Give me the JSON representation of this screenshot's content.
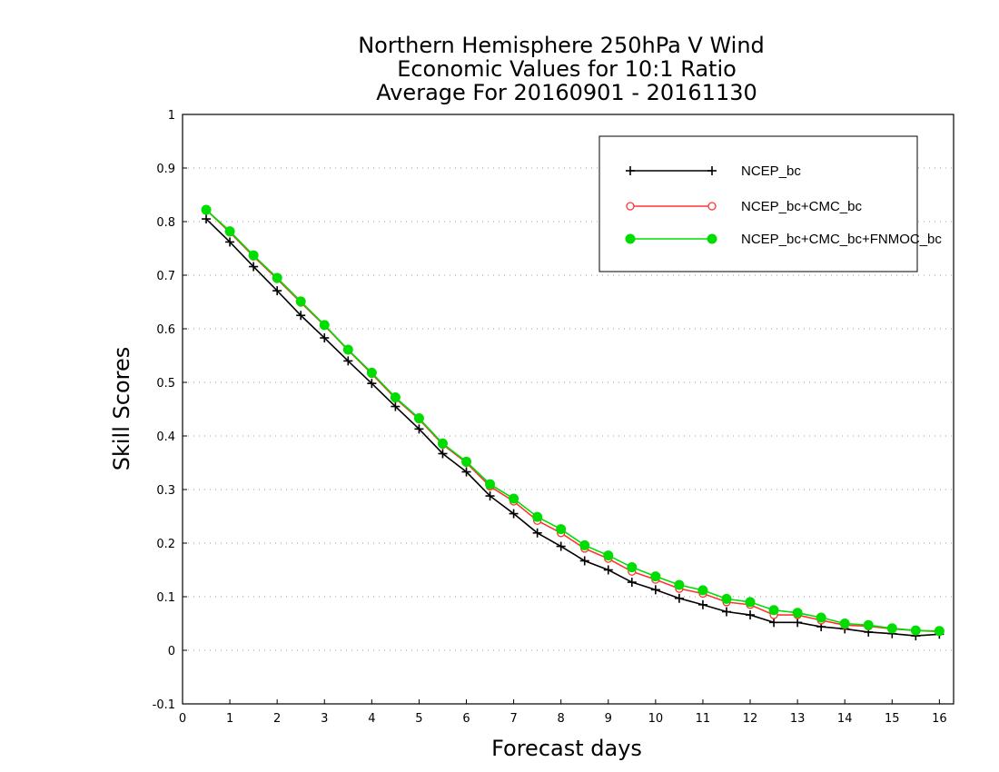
{
  "chart_data": {
    "type": "line",
    "title_lines": [
      "Northern Hemisphere 250hPa V Wind",
      "Economic Values for 10:1 Ratio",
      "Average For 20160901 - 20161130"
    ],
    "xlabel": "Forecast days",
    "ylabel": "Skill Scores",
    "xlim": [
      0,
      16.3
    ],
    "ylim": [
      -0.1,
      1
    ],
    "x_ticks": [
      0,
      1,
      2,
      3,
      4,
      5,
      6,
      7,
      8,
      9,
      10,
      11,
      12,
      13,
      14,
      15,
      16
    ],
    "y_ticks": [
      -0.1,
      0,
      0.1,
      0.2,
      0.3,
      0.4,
      0.5,
      0.6,
      0.7,
      0.8,
      0.9,
      1
    ],
    "y_tick_labels": [
      "-0.1",
      "0",
      "0.1",
      "0.2",
      "0.3",
      "0.4",
      "0.5",
      "0.6",
      "0.7",
      "0.8",
      "0.9",
      "1"
    ],
    "grid": "horizontal dotted",
    "legend_position": "top-right",
    "x": [
      0.5,
      1,
      1.5,
      2,
      2.5,
      3,
      3.5,
      4,
      4.5,
      5,
      5.5,
      6,
      6.5,
      7,
      7.5,
      8,
      8.5,
      9,
      9.5,
      10,
      10.5,
      11,
      11.5,
      12,
      12.5,
      13,
      13.5,
      14,
      14.5,
      15,
      15.5,
      16
    ],
    "series": [
      {
        "name": "NCEP_bc",
        "color": "#000000",
        "marker": "plus",
        "values": [
          0.805,
          0.762,
          0.716,
          0.671,
          0.625,
          0.583,
          0.54,
          0.498,
          0.455,
          0.413,
          0.367,
          0.333,
          0.288,
          0.255,
          0.219,
          0.194,
          0.167,
          0.15,
          0.127,
          0.113,
          0.097,
          0.085,
          0.072,
          0.066,
          0.052,
          0.052,
          0.044,
          0.04,
          0.034,
          0.031,
          0.027,
          0.03
        ]
      },
      {
        "name": "NCEP_bc+CMC_bc",
        "color": "#ff3333",
        "marker": "open-circle",
        "values": [
          0.822,
          0.78,
          0.735,
          0.693,
          0.649,
          0.606,
          0.56,
          0.516,
          0.47,
          0.431,
          0.384,
          0.35,
          0.306,
          0.278,
          0.242,
          0.219,
          0.19,
          0.171,
          0.147,
          0.132,
          0.115,
          0.106,
          0.09,
          0.085,
          0.066,
          0.066,
          0.056,
          0.047,
          0.045,
          0.04,
          0.037,
          0.035
        ]
      },
      {
        "name": "NCEP_bc+CMC_bc+FNMOC_bc",
        "color": "#00dd00",
        "marker": "filled-circle",
        "values": [
          0.822,
          0.782,
          0.737,
          0.695,
          0.651,
          0.607,
          0.561,
          0.518,
          0.472,
          0.433,
          0.386,
          0.352,
          0.31,
          0.283,
          0.249,
          0.226,
          0.196,
          0.177,
          0.155,
          0.138,
          0.122,
          0.112,
          0.096,
          0.09,
          0.075,
          0.07,
          0.061,
          0.05,
          0.047,
          0.041,
          0.037,
          0.036
        ]
      }
    ]
  }
}
